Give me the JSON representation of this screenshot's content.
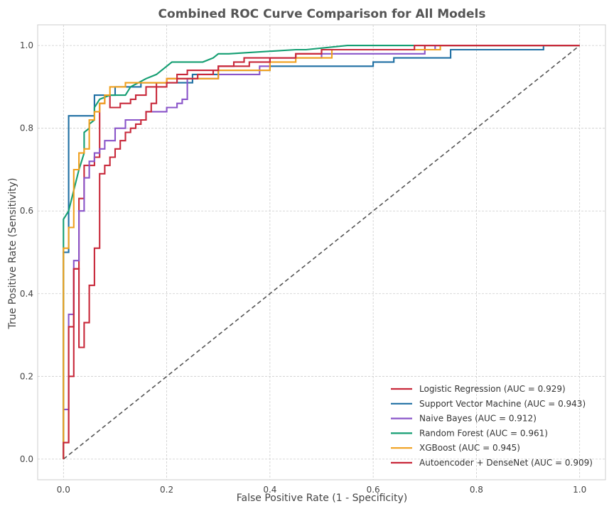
{
  "chart_data": {
    "type": "line",
    "title": "Combined ROC Curve Comparison for All Models",
    "xlabel": "False Positive Rate (1 - Specificity)",
    "ylabel": "True Positive Rate (Sensitivity)",
    "xlim": [
      -0.05,
      1.05
    ],
    "ylim": [
      -0.05,
      1.05
    ],
    "xticks": [
      "0.0",
      "0.2",
      "0.4",
      "0.6",
      "0.8",
      "1.0"
    ],
    "yticks": [
      "0.0",
      "0.2",
      "0.4",
      "0.6",
      "0.8",
      "1.0"
    ],
    "grid": true,
    "legend_position": "bottom-right",
    "diagonal": {
      "x": [
        0,
        1
      ],
      "y": [
        0,
        1
      ],
      "color": "#555555",
      "style": "dashed"
    },
    "series": [
      {
        "name": "Logistic Regression (AUC = 0.929)",
        "color": "#c8283a",
        "x": [
          0,
          0,
          0.01,
          0.01,
          0.02,
          0.02,
          0.03,
          0.03,
          0.04,
          0.04,
          0.06,
          0.06,
          0.07,
          0.07,
          0.08,
          0.08,
          0.09,
          0.09,
          0.11,
          0.11,
          0.13,
          0.13,
          0.14,
          0.14,
          0.16,
          0.16,
          0.18,
          0.18,
          0.2,
          0.2,
          0.22,
          0.22,
          0.24,
          0.24,
          0.3,
          0.3,
          0.33,
          0.33,
          0.35,
          0.35,
          0.45,
          0.45,
          0.5,
          0.5,
          0.7,
          0.7,
          0.77,
          0.77,
          1.0
        ],
        "y": [
          0,
          0.04,
          0.04,
          0.2,
          0.2,
          0.46,
          0.46,
          0.63,
          0.63,
          0.71,
          0.71,
          0.73,
          0.73,
          0.86,
          0.86,
          0.88,
          0.88,
          0.85,
          0.85,
          0.86,
          0.86,
          0.87,
          0.87,
          0.88,
          0.88,
          0.9,
          0.9,
          0.91,
          0.91,
          0.92,
          0.92,
          0.93,
          0.93,
          0.94,
          0.94,
          0.95,
          0.95,
          0.96,
          0.96,
          0.97,
          0.97,
          0.98,
          0.98,
          0.99,
          0.99,
          1.0,
          1.0,
          1.0,
          1.0
        ]
      },
      {
        "name": "Support Vector Machine (AUC = 0.943)",
        "color": "#1f6fa3",
        "x": [
          0,
          0,
          0.01,
          0.01,
          0.06,
          0.06,
          0.1,
          0.1,
          0.15,
          0.15,
          0.25,
          0.25,
          0.3,
          0.3,
          0.4,
          0.4,
          0.6,
          0.6,
          0.64,
          0.64,
          0.75,
          0.75,
          0.93,
          0.93,
          1.0
        ],
        "y": [
          0,
          0.5,
          0.5,
          0.83,
          0.83,
          0.88,
          0.88,
          0.9,
          0.9,
          0.91,
          0.91,
          0.93,
          0.93,
          0.94,
          0.94,
          0.95,
          0.95,
          0.96,
          0.96,
          0.97,
          0.97,
          0.99,
          0.99,
          1.0,
          1.0
        ]
      },
      {
        "name": "Naive Bayes (AUC = 0.912)",
        "color": "#8a55c9",
        "x": [
          0,
          0,
          0.01,
          0.01,
          0.02,
          0.02,
          0.03,
          0.03,
          0.04,
          0.04,
          0.05,
          0.05,
          0.06,
          0.06,
          0.07,
          0.07,
          0.08,
          0.08,
          0.1,
          0.1,
          0.12,
          0.12,
          0.16,
          0.16,
          0.2,
          0.2,
          0.22,
          0.22,
          0.23,
          0.23,
          0.24,
          0.24,
          0.3,
          0.3,
          0.38,
          0.38,
          0.4,
          0.4,
          0.5,
          0.5,
          0.7,
          0.7,
          0.72,
          0.72,
          1.0
        ],
        "y": [
          0,
          0.12,
          0.12,
          0.35,
          0.35,
          0.48,
          0.48,
          0.6,
          0.6,
          0.68,
          0.68,
          0.72,
          0.72,
          0.74,
          0.74,
          0.75,
          0.75,
          0.77,
          0.77,
          0.8,
          0.8,
          0.82,
          0.82,
          0.84,
          0.84,
          0.85,
          0.85,
          0.86,
          0.86,
          0.87,
          0.87,
          0.92,
          0.92,
          0.93,
          0.93,
          0.95,
          0.95,
          0.97,
          0.97,
          0.98,
          0.98,
          0.99,
          0.99,
          1.0,
          1.0
        ]
      },
      {
        "name": "Random Forest (AUC = 0.961)",
        "color": "#149e72",
        "x": [
          0,
          0,
          0.01,
          0.02,
          0.03,
          0.04,
          0.04,
          0.05,
          0.05,
          0.06,
          0.06,
          0.07,
          0.09,
          0.1,
          0.12,
          0.13,
          0.16,
          0.18,
          0.2,
          0.21,
          0.24,
          0.27,
          0.29,
          0.3,
          0.3,
          0.32,
          0.45,
          0.47,
          0.55,
          1.0
        ],
        "y": [
          0,
          0.58,
          0.6,
          0.65,
          0.7,
          0.74,
          0.79,
          0.8,
          0.81,
          0.82,
          0.85,
          0.87,
          0.88,
          0.88,
          0.88,
          0.9,
          0.92,
          0.93,
          0.95,
          0.96,
          0.96,
          0.96,
          0.97,
          0.98,
          0.98,
          0.98,
          0.99,
          0.99,
          1.0,
          1.0
        ]
      },
      {
        "name": "XGBoost (AUC = 0.945)",
        "color": "#f0a01e",
        "x": [
          0,
          0,
          0.01,
          0.01,
          0.02,
          0.02,
          0.03,
          0.03,
          0.04,
          0.04,
          0.05,
          0.05,
          0.06,
          0.06,
          0.07,
          0.07,
          0.08,
          0.08,
          0.09,
          0.09,
          0.12,
          0.12,
          0.2,
          0.2,
          0.3,
          0.3,
          0.4,
          0.4,
          0.45,
          0.45,
          0.52,
          0.52,
          0.65,
          0.65,
          0.73,
          0.73,
          1.0
        ],
        "y": [
          0,
          0.51,
          0.51,
          0.56,
          0.56,
          0.7,
          0.7,
          0.74,
          0.74,
          0.75,
          0.75,
          0.82,
          0.82,
          0.84,
          0.84,
          0.86,
          0.86,
          0.88,
          0.88,
          0.9,
          0.9,
          0.91,
          0.91,
          0.92,
          0.92,
          0.94,
          0.94,
          0.96,
          0.96,
          0.97,
          0.97,
          0.99,
          0.99,
          0.99,
          0.99,
          1.0,
          1.0
        ]
      },
      {
        "name": "Autoencoder + DenseNet (AUC = 0.909)",
        "color": "#c8283a",
        "x": [
          0,
          0,
          0.01,
          0.01,
          0.02,
          0.02,
          0.03,
          0.03,
          0.04,
          0.04,
          0.05,
          0.05,
          0.06,
          0.06,
          0.07,
          0.07,
          0.08,
          0.08,
          0.09,
          0.09,
          0.1,
          0.1,
          0.11,
          0.11,
          0.12,
          0.12,
          0.13,
          0.13,
          0.14,
          0.14,
          0.15,
          0.15,
          0.16,
          0.16,
          0.17,
          0.17,
          0.18,
          0.18,
          0.2,
          0.2,
          0.22,
          0.22,
          0.26,
          0.26,
          0.29,
          0.29,
          0.3,
          0.3,
          0.36,
          0.36,
          0.4,
          0.4,
          0.45,
          0.45,
          0.5,
          0.5,
          0.6,
          0.6,
          0.68,
          0.68,
          0.75,
          0.75,
          1.0
        ],
        "y": [
          0,
          0.04,
          0.04,
          0.32,
          0.32,
          0.46,
          0.46,
          0.27,
          0.27,
          0.33,
          0.33,
          0.42,
          0.42,
          0.51,
          0.51,
          0.69,
          0.69,
          0.71,
          0.71,
          0.73,
          0.73,
          0.75,
          0.75,
          0.77,
          0.77,
          0.79,
          0.79,
          0.8,
          0.8,
          0.81,
          0.81,
          0.82,
          0.82,
          0.84,
          0.84,
          0.86,
          0.86,
          0.9,
          0.9,
          0.91,
          0.91,
          0.92,
          0.92,
          0.93,
          0.93,
          0.94,
          0.94,
          0.95,
          0.95,
          0.96,
          0.96,
          0.97,
          0.97,
          0.98,
          0.98,
          0.99,
          0.99,
          0.99,
          0.99,
          1.0,
          1.0,
          1.0,
          1.0
        ]
      }
    ]
  }
}
